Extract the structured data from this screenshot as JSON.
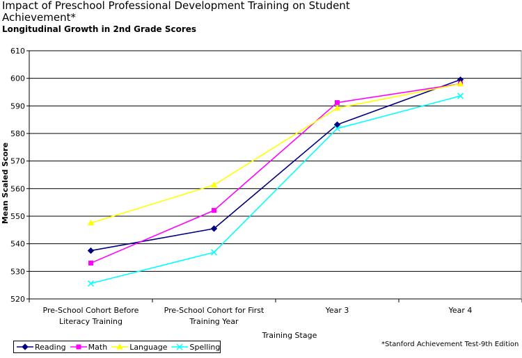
{
  "header": {
    "title": "Impact of Preschool Professional Development Training on Student Achievement*",
    "subtitle": "Longitudinal Growth in 2nd Grade Scores"
  },
  "footnote": "*Stanford Achievement Test-9th Edition",
  "chart_data": {
    "type": "line",
    "xlabel": "Training Stage",
    "ylabel": "Mean Scaled Score",
    "ylim": [
      520,
      610
    ],
    "yticks": [
      520,
      530,
      540,
      550,
      560,
      570,
      580,
      590,
      600,
      610
    ],
    "grid": true,
    "legend_position": "bottom",
    "categories": [
      [
        "Pre-School Cohort Before",
        "Literacy Training"
      ],
      [
        "Pre-School Cohort for First",
        "Training Year"
      ],
      [
        "Year 3"
      ],
      [
        "Year 4"
      ]
    ],
    "series": [
      {
        "name": "Reading",
        "color": "#000080",
        "marker": "diamond",
        "values": [
          537.5,
          545.5,
          583.2,
          599.5
        ]
      },
      {
        "name": "Math",
        "color": "#ff00ff",
        "marker": "square",
        "values": [
          533.0,
          552.1,
          591.2,
          598.0
        ]
      },
      {
        "name": "Language",
        "color": "#ffff00",
        "marker": "triangle",
        "values": [
          547.5,
          561.3,
          589.2,
          598.0
        ]
      },
      {
        "name": "Spelling",
        "color": "#00ffff",
        "marker": "x",
        "values": [
          525.6,
          536.9,
          581.8,
          593.6
        ]
      }
    ]
  }
}
